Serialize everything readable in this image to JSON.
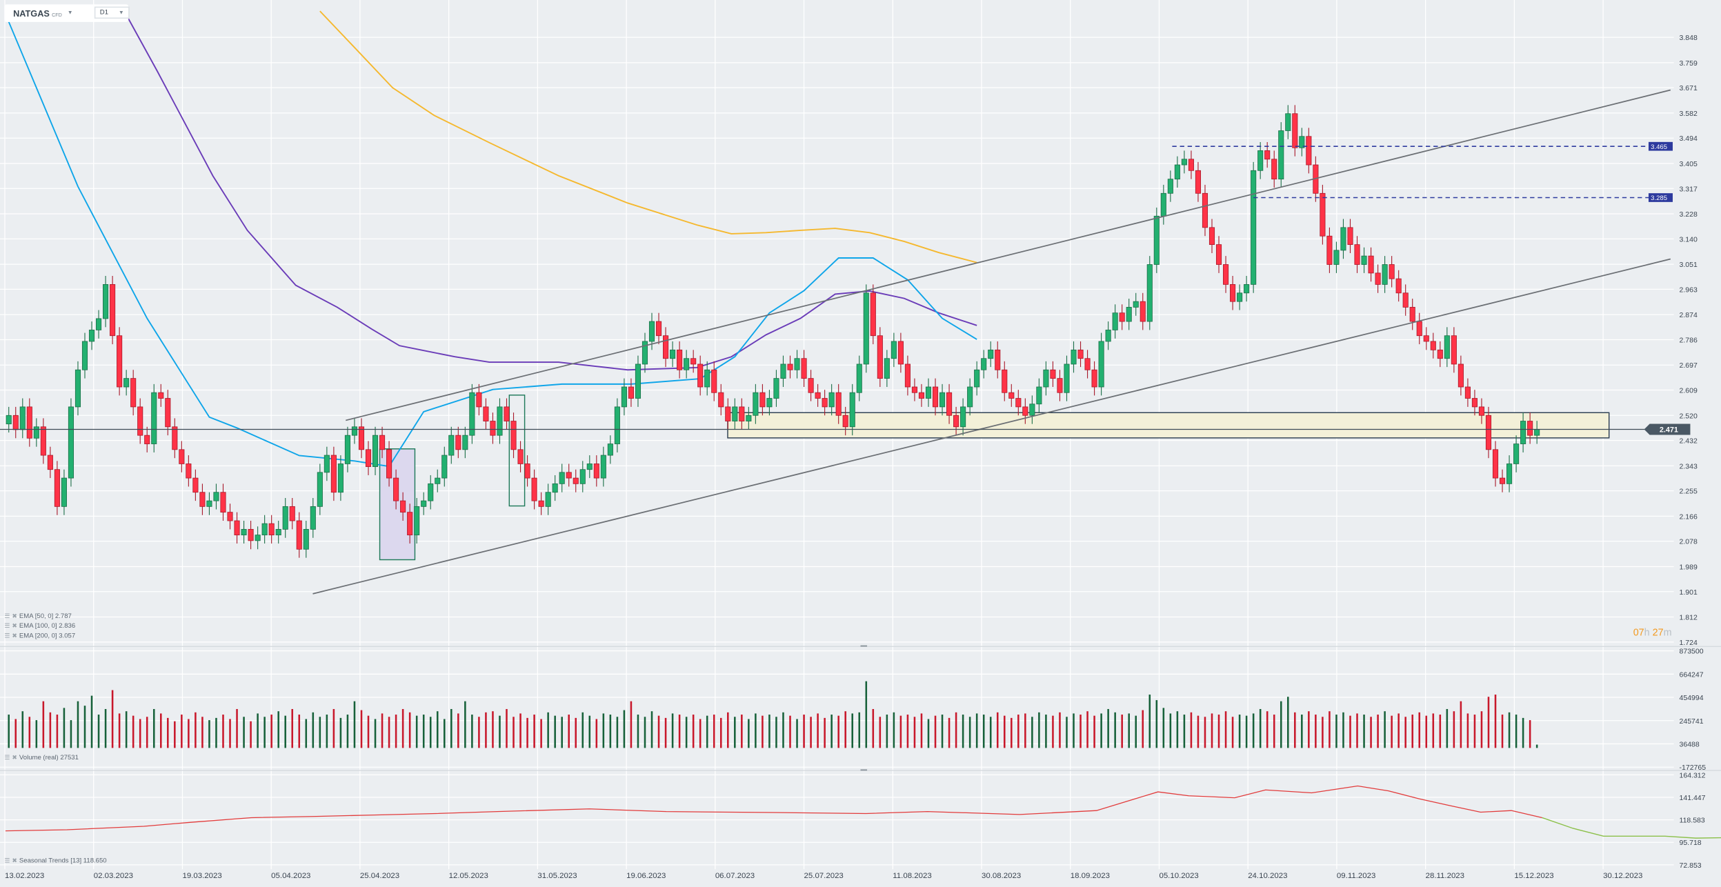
{
  "header": {
    "symbol": "NATGAS",
    "instrument_type": "CFD",
    "timeframe": "D1"
  },
  "indicators": {
    "ema50": {
      "label": "EMA [50, 0] 2.787",
      "color": "#0ea5e9"
    },
    "ema100": {
      "label": "EMA [100, 0] 2.836",
      "color": "#6a3cb8"
    },
    "ema200": {
      "label": "EMA [200, 0] 3.057",
      "color": "#f5b82e"
    },
    "volume": {
      "label": "Volume (real) 27531"
    },
    "seasonal": {
      "label": "Seasonal Trends [13] 118.650"
    }
  },
  "countdown": {
    "hours": "07",
    "h": "h",
    "minutes": "27",
    "m": "m"
  },
  "colors": {
    "up": "#23b070",
    "down": "#ff3347",
    "vol_up": "#17613a",
    "vol_down": "#c8182b",
    "drawing": "#2d3a9e",
    "zone": "#f3f0d8"
  },
  "chart_data": {
    "type": "candlestick",
    "x_tick_labels": [
      "13.02.2023",
      "02.03.2023",
      "19.03.2023",
      "05.04.2023",
      "25.04.2023",
      "12.05.2023",
      "31.05.2023",
      "19.06.2023",
      "06.07.2023",
      "25.07.2023",
      "11.08.2023",
      "30.08.2023",
      "18.09.2023",
      "05.10.2023",
      "24.10.2023",
      "09.11.2023",
      "28.11.2023",
      "15.12.2023",
      "30.12.2023"
    ],
    "price_axis": {
      "ticks": [
        "3.848",
        "3.759",
        "3.671",
        "3.582",
        "3.494",
        "3.405",
        "3.317",
        "3.228",
        "3.140",
        "3.051",
        "2.963",
        "2.874",
        "2.786",
        "2.697",
        "2.609",
        "2.520",
        "2.432",
        "2.343",
        "2.255",
        "2.166",
        "2.078",
        "1.989",
        "1.901",
        "1.812",
        "1.724"
      ],
      "range": [
        1.724,
        3.848
      ]
    },
    "last_price": "2.471",
    "levels": [
      "3.465",
      "3.285"
    ],
    "close": [
      2.52,
      2.47,
      2.55,
      2.44,
      2.48,
      2.38,
      2.33,
      2.2,
      2.3,
      2.55,
      2.68,
      2.78,
      2.82,
      2.86,
      2.98,
      2.8,
      2.62,
      2.65,
      2.55,
      2.45,
      2.42,
      2.6,
      2.58,
      2.48,
      2.4,
      2.35,
      2.3,
      2.25,
      2.2,
      2.22,
      2.25,
      2.18,
      2.15,
      2.1,
      2.12,
      2.08,
      2.1,
      2.14,
      2.1,
      2.12,
      2.2,
      2.15,
      2.05,
      2.12,
      2.2,
      2.32,
      2.38,
      2.25,
      2.35,
      2.45,
      2.48,
      2.4,
      2.34,
      2.45,
      2.4,
      2.3,
      2.22,
      2.18,
      2.1,
      2.2,
      2.22,
      2.28,
      2.3,
      2.38,
      2.45,
      2.4,
      2.45,
      2.6,
      2.55,
      2.5,
      2.45,
      2.55,
      2.5,
      2.4,
      2.35,
      2.3,
      2.22,
      2.2,
      2.25,
      2.28,
      2.32,
      2.3,
      2.28,
      2.33,
      2.35,
      2.3,
      2.38,
      2.42,
      2.55,
      2.62,
      2.58,
      2.7,
      2.78,
      2.85,
      2.8,
      2.72,
      2.75,
      2.68,
      2.72,
      2.7,
      2.62,
      2.68,
      2.6,
      2.55,
      2.5,
      2.55,
      2.5,
      2.52,
      2.6,
      2.55,
      2.58,
      2.65,
      2.7,
      2.68,
      2.72,
      2.65,
      2.6,
      2.58,
      2.55,
      2.6,
      2.52,
      2.48,
      2.6,
      2.7,
      2.95,
      2.8,
      2.65,
      2.72,
      2.78,
      2.7,
      2.62,
      2.6,
      2.58,
      2.62,
      2.55,
      2.6,
      2.52,
      2.48,
      2.55,
      2.62,
      2.68,
      2.72,
      2.75,
      2.68,
      2.6,
      2.58,
      2.55,
      2.52,
      2.56,
      2.62,
      2.68,
      2.65,
      2.6,
      2.7,
      2.75,
      2.72,
      2.68,
      2.62,
      2.78,
      2.82,
      2.88,
      2.85,
      2.9,
      2.92,
      2.85,
      3.05,
      3.22,
      3.3,
      3.35,
      3.4,
      3.42,
      3.38,
      3.3,
      3.18,
      3.12,
      3.05,
      2.98,
      2.92,
      2.95,
      2.98,
      3.38,
      3.45,
      3.42,
      3.35,
      3.52,
      3.58,
      3.46,
      3.5,
      3.4,
      3.3,
      3.15,
      3.05,
      3.1,
      3.18,
      3.12,
      3.05,
      3.08,
      3.02,
      2.98,
      3.05,
      3.0,
      2.95,
      2.9,
      2.85,
      2.8,
      2.78,
      2.75,
      2.72,
      2.8,
      2.7,
      2.62,
      2.58,
      2.55,
      2.52,
      2.4,
      2.3,
      2.28,
      2.35,
      2.42,
      2.5,
      2.45,
      2.471
    ],
    "ema": {
      "ema50": [
        [
          0,
          3.902
        ],
        [
          10,
          3.324
        ],
        [
          20,
          2.861
        ],
        [
          29,
          2.514
        ],
        [
          33,
          2.476
        ],
        [
          42,
          2.379
        ],
        [
          50,
          2.36
        ],
        [
          55,
          2.341
        ],
        [
          60,
          2.533
        ],
        [
          70,
          2.611
        ],
        [
          80,
          2.63
        ],
        [
          90,
          2.63
        ],
        [
          100,
          2.649
        ],
        [
          105,
          2.726
        ],
        [
          110,
          2.88
        ],
        [
          115,
          2.958
        ],
        [
          120,
          3.073
        ],
        [
          125,
          3.073
        ],
        [
          130,
          2.996
        ],
        [
          135,
          2.861
        ],
        [
          140,
          2.787
        ]
      ],
      "ema100": [
        [
          16.7,
          3.94
        ],
        [
          21.5,
          3.728
        ],
        [
          29.5,
          3.362
        ],
        [
          34.5,
          3.17
        ],
        [
          41.5,
          2.977
        ],
        [
          47.5,
          2.9
        ],
        [
          52.5,
          2.823
        ],
        [
          56.5,
          2.765
        ],
        [
          64.5,
          2.726
        ],
        [
          69.5,
          2.707
        ],
        [
          79.5,
          2.707
        ],
        [
          89.5,
          2.68
        ],
        [
          99.5,
          2.688
        ],
        [
          104.5,
          2.726
        ],
        [
          109.5,
          2.803
        ],
        [
          114.5,
          2.861
        ],
        [
          119.5,
          2.946
        ],
        [
          124.5,
          2.957
        ],
        [
          129.5,
          2.931
        ],
        [
          134.5,
          2.88
        ],
        [
          140,
          2.836
        ]
      ],
      "ema200": [
        [
          45,
          3.94
        ],
        [
          49.5,
          3.825
        ],
        [
          55.5,
          3.671
        ],
        [
          61.5,
          3.574
        ],
        [
          69.5,
          3.478
        ],
        [
          79.5,
          3.362
        ],
        [
          89.5,
          3.266
        ],
        [
          99.5,
          3.189
        ],
        [
          104.5,
          3.158
        ],
        [
          109.5,
          3.162
        ],
        [
          114.5,
          3.17
        ],
        [
          119.5,
          3.177
        ],
        [
          124.5,
          3.162
        ],
        [
          129.5,
          3.131
        ],
        [
          134.5,
          3.092
        ],
        [
          140,
          3.057
        ]
      ]
    },
    "volume_axis": {
      "ticks": [
        "873500",
        "664247",
        "454994",
        "245741",
        "36488",
        "-172765"
      ],
      "range": [
        -172765,
        873500
      ]
    },
    "volume": [
      300,
      260,
      330,
      280,
      250,
      420,
      320,
      300,
      360,
      250,
      420,
      380,
      470,
      300,
      350,
      520,
      310,
      330,
      290,
      260,
      280,
      350,
      310,
      270,
      240,
      300,
      260,
      320,
      280,
      250,
      270,
      300,
      260,
      350,
      280,
      240,
      310,
      280,
      300,
      330,
      290,
      350,
      300,
      260,
      320,
      280,
      300,
      350,
      270,
      300,
      420,
      340,
      290,
      260,
      310,
      280,
      300,
      350,
      320,
      290,
      300,
      280,
      330,
      260,
      350,
      310,
      420,
      300,
      280,
      320,
      330,
      290,
      350,
      280,
      310,
      270,
      300,
      260,
      320,
      290,
      280,
      300,
      270,
      320,
      290,
      260,
      310,
      300,
      280,
      340,
      420,
      300,
      280,
      330,
      290,
      270,
      310,
      300,
      280,
      300,
      260,
      290,
      300,
      270,
      320,
      280,
      300,
      260,
      310,
      290,
      300,
      280,
      320,
      290,
      260,
      300,
      280,
      310,
      270,
      300,
      290,
      330,
      310,
      320,
      600,
      350,
      280,
      300,
      320,
      290,
      300,
      280,
      310,
      260,
      290,
      300,
      270,
      320,
      300,
      280,
      310,
      300,
      280,
      320,
      290,
      270,
      300,
      310,
      280,
      320,
      300,
      290,
      320,
      280,
      310,
      300,
      330,
      290,
      310,
      350,
      320,
      300,
      310,
      290,
      340,
      480,
      430,
      360,
      310,
      330,
      300,
      320,
      290,
      280,
      310,
      300,
      330,
      280,
      300,
      290,
      310,
      350,
      330,
      300,
      420,
      460,
      320,
      300,
      330,
      300,
      280,
      330,
      300,
      320,
      290,
      310,
      300,
      280,
      300,
      330,
      290,
      310,
      280,
      300,
      320,
      290,
      310,
      300,
      350,
      330,
      420,
      310,
      300,
      330,
      460,
      480,
      300,
      320,
      300,
      270,
      250,
      30
    ],
    "seasonal_axis": {
      "ticks": [
        "164.312",
        "141.447",
        "118.583",
        "95.718",
        "72.853"
      ],
      "range": [
        72.853,
        164.312
      ]
    },
    "seasonal_past": [
      [
        0,
        107.4
      ],
      [
        20,
        108.5
      ],
      [
        45,
        112
      ],
      [
        60,
        116
      ],
      [
        80,
        120.8
      ],
      [
        100,
        122
      ],
      [
        120,
        123.5
      ],
      [
        140,
        125
      ],
      [
        160,
        127
      ],
      [
        190,
        129.7
      ],
      [
        215,
        127
      ],
      [
        250,
        126
      ],
      [
        280,
        125
      ],
      [
        300,
        127
      ],
      [
        330,
        124
      ],
      [
        355,
        128
      ],
      [
        375,
        147
      ],
      [
        385,
        143
      ],
      [
        400,
        141
      ],
      [
        410,
        149
      ],
      [
        425,
        146
      ],
      [
        440,
        153
      ],
      [
        450,
        148
      ],
      [
        460,
        140
      ],
      [
        470,
        133
      ],
      [
        480,
        126.4
      ],
      [
        490,
        128
      ],
      [
        500,
        120.8
      ]
    ],
    "seasonal_forecast": [
      [
        500,
        120.8
      ],
      [
        510,
        110
      ],
      [
        520,
        102
      ],
      [
        540,
        102
      ],
      [
        550,
        100
      ],
      [
        560,
        100.5
      ],
      [
        570,
        104
      ]
    ]
  }
}
